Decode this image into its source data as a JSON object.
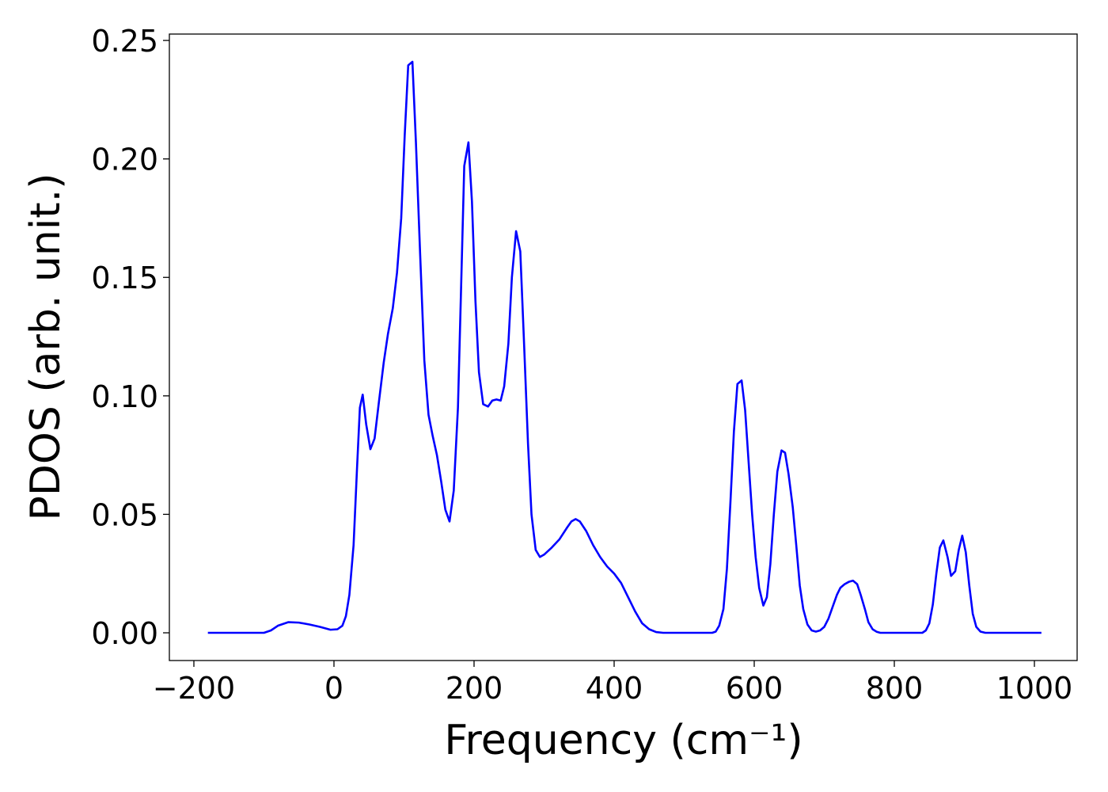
{
  "chart_data": {
    "type": "line",
    "xlabel": "Frequency (cm⁻¹)",
    "ylabel": "PDOS (arb. unit.)",
    "xlim": [
      -235,
      1061
    ],
    "ylim": [
      -0.0117,
      0.2527
    ],
    "xticks": [
      {
        "value": -200,
        "label": "−200"
      },
      0,
      200,
      400,
      600,
      800,
      1000
    ],
    "yticks": [
      {
        "value": 0,
        "label": "0.00"
      },
      {
        "value": 0.05,
        "label": "0.05"
      },
      {
        "value": 0.1,
        "label": "0.10"
      },
      {
        "value": 0.15,
        "label": "0.15"
      },
      {
        "value": 0.2,
        "label": "0.20"
      },
      {
        "value": 0.25,
        "label": "0.25"
      }
    ],
    "grid": false,
    "series": [
      {
        "color": "#0000ff",
        "x": [
          -180,
          -100,
          -90,
          -80,
          -65,
          -50,
          -35,
          -20,
          -5,
          5,
          12,
          17,
          22,
          28,
          33,
          37,
          41,
          46,
          52,
          58,
          64,
          71,
          77,
          84,
          90,
          96,
          101,
          106,
          112,
          117,
          123,
          129,
          135,
          141,
          147,
          153,
          159,
          165,
          171,
          177,
          181,
          186,
          192,
          197,
          202,
          207,
          213,
          220,
          226,
          232,
          238,
          243,
          249,
          254,
          260,
          266,
          271,
          277,
          282,
          288,
          294,
          300,
          311,
          322,
          333,
          339,
          345,
          351,
          360,
          370,
          380,
          390,
          400,
          410,
          420,
          430,
          440,
          450,
          460,
          470,
          540,
          545,
          550,
          556,
          561,
          566,
          571,
          576,
          582,
          587,
          592,
          597,
          602,
          607,
          613,
          618,
          623,
          628,
          633,
          639,
          644,
          649,
          655,
          660,
          665,
          670,
          676,
          682,
          688,
          694,
          700,
          706,
          712,
          718,
          723,
          729,
          735,
          741,
          747,
          752,
          758,
          763,
          769,
          775,
          780,
          840,
          845,
          850,
          855,
          860,
          865,
          870,
          876,
          881,
          887,
          892,
          897,
          902,
          907,
          912,
          917,
          923,
          930,
          1010
        ],
        "values": [
          0,
          0,
          0.001,
          0.003,
          0.0045,
          0.0043,
          0.0035,
          0.0025,
          0.0013,
          0.0015,
          0.003,
          0.007,
          0.016,
          0.037,
          0.07,
          0.095,
          0.1005,
          0.088,
          0.0775,
          0.082,
          0.097,
          0.114,
          0.126,
          0.137,
          0.152,
          0.175,
          0.21,
          0.2395,
          0.241,
          0.207,
          0.16,
          0.115,
          0.092,
          0.083,
          0.075,
          0.064,
          0.052,
          0.047,
          0.06,
          0.095,
          0.14,
          0.197,
          0.207,
          0.182,
          0.14,
          0.11,
          0.0965,
          0.0955,
          0.098,
          0.0985,
          0.098,
          0.104,
          0.122,
          0.15,
          0.1695,
          0.161,
          0.125,
          0.08,
          0.05,
          0.035,
          0.032,
          0.033,
          0.036,
          0.0395,
          0.0445,
          0.047,
          0.048,
          0.047,
          0.043,
          0.037,
          0.032,
          0.028,
          0.025,
          0.021,
          0.015,
          0.009,
          0.004,
          0.0015,
          0.0003,
          0,
          0,
          0.0005,
          0.003,
          0.01,
          0.027,
          0.055,
          0.085,
          0.105,
          0.1065,
          0.094,
          0.072,
          0.05,
          0.032,
          0.019,
          0.0115,
          0.015,
          0.029,
          0.05,
          0.068,
          0.077,
          0.076,
          0.067,
          0.053,
          0.037,
          0.02,
          0.01,
          0.0035,
          0.001,
          0.0005,
          0.001,
          0.0025,
          0.006,
          0.011,
          0.016,
          0.019,
          0.0205,
          0.0215,
          0.022,
          0.0205,
          0.016,
          0.01,
          0.0045,
          0.0015,
          0.0004,
          0,
          0,
          0.001,
          0.004,
          0.012,
          0.025,
          0.036,
          0.039,
          0.032,
          0.024,
          0.026,
          0.035,
          0.041,
          0.034,
          0.02,
          0.008,
          0.0025,
          0.0005,
          0,
          0
        ]
      }
    ]
  }
}
